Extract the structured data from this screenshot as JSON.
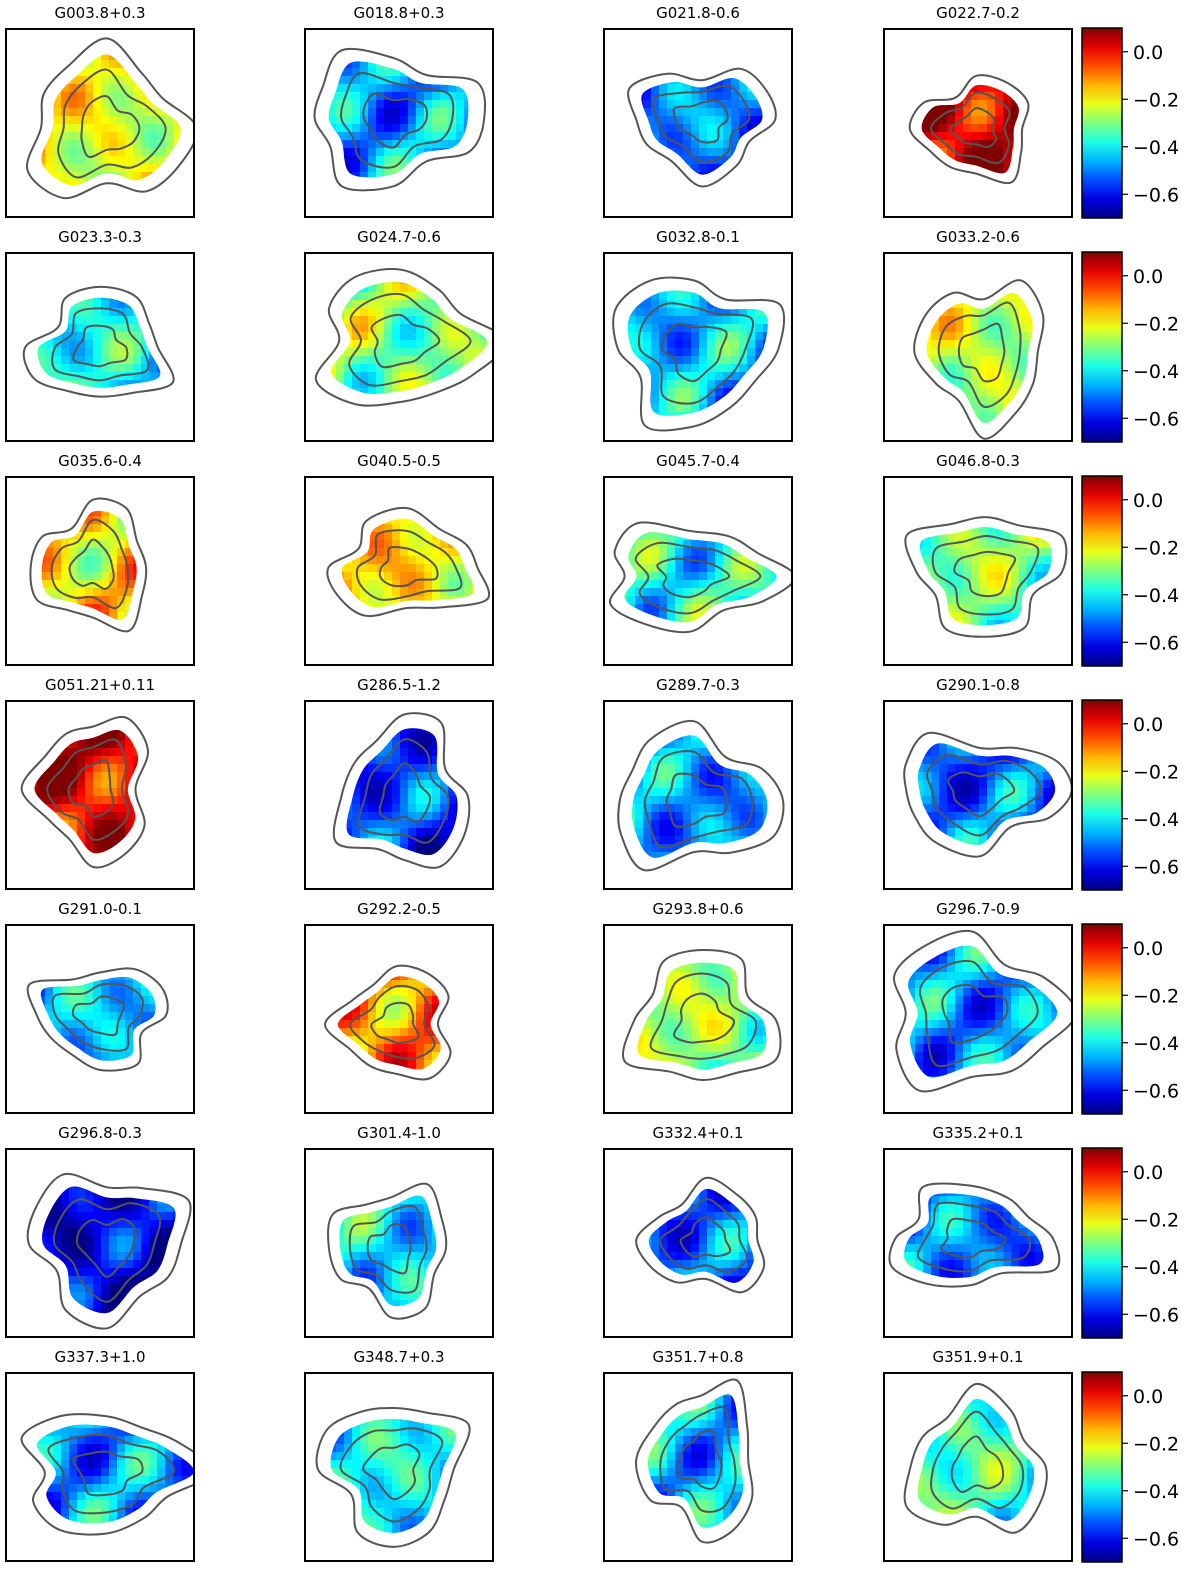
{
  "chart_data": {
    "type": "heatmap",
    "colormap": "jet",
    "colorbar": {
      "range": [
        -0.7,
        0.1
      ],
      "ticks": [
        0.0,
        -0.2,
        -0.4,
        -0.6
      ],
      "tick_labels": [
        "0.0",
        "−0.2",
        "−0.4",
        "−0.6"
      ]
    },
    "contour_color": "#555555",
    "panels": [
      {
        "title": "G003.8+0.3",
        "dominant_value": -0.22
      },
      {
        "title": "G018.8+0.3",
        "dominant_value": -0.47
      },
      {
        "title": "G021.8-0.6",
        "dominant_value": -0.5
      },
      {
        "title": "G022.7-0.2",
        "dominant_value": 0.05
      },
      {
        "title": "G023.3-0.3",
        "dominant_value": -0.4
      },
      {
        "title": "G024.7-0.6",
        "dominant_value": -0.3
      },
      {
        "title": "G032.8-0.1",
        "dominant_value": -0.45
      },
      {
        "title": "G033.2-0.6",
        "dominant_value": -0.25
      },
      {
        "title": "G035.6-0.4",
        "dominant_value": -0.18
      },
      {
        "title": "G040.5-0.5",
        "dominant_value": -0.18
      },
      {
        "title": "G045.7-0.4",
        "dominant_value": -0.38
      },
      {
        "title": "G046.8-0.3",
        "dominant_value": -0.3
      },
      {
        "title": "G051.21+0.11",
        "dominant_value": 0.02
      },
      {
        "title": "G286.5-1.2",
        "dominant_value": -0.55
      },
      {
        "title": "G289.7-0.3",
        "dominant_value": -0.48
      },
      {
        "title": "G290.1-0.8",
        "dominant_value": -0.52
      },
      {
        "title": "G291.0-0.1",
        "dominant_value": -0.45
      },
      {
        "title": "G292.2-0.5",
        "dominant_value": -0.1
      },
      {
        "title": "G293.8+0.6",
        "dominant_value": -0.28
      },
      {
        "title": "G296.7-0.9",
        "dominant_value": -0.48
      },
      {
        "title": "G296.8-0.3",
        "dominant_value": -0.62
      },
      {
        "title": "G301.4-1.0",
        "dominant_value": -0.42
      },
      {
        "title": "G332.4+0.1",
        "dominant_value": -0.52
      },
      {
        "title": "G335.2+0.1",
        "dominant_value": -0.5
      },
      {
        "title": "G337.3+1.0",
        "dominant_value": -0.48
      },
      {
        "title": "G348.7+0.3",
        "dominant_value": -0.4
      },
      {
        "title": "G351.7+0.8",
        "dominant_value": -0.45
      },
      {
        "title": "G351.9+0.1",
        "dominant_value": -0.35
      }
    ]
  }
}
